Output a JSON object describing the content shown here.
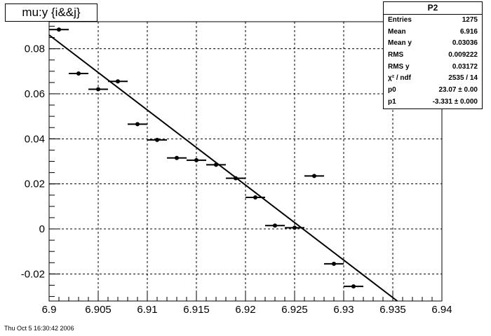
{
  "title": "mu:y {i&&j}",
  "timestamp": "Thu Oct  5 16:30:42 2006",
  "stats": {
    "name": "P2",
    "rows": [
      {
        "label": "Entries",
        "value": "1275"
      },
      {
        "label": "Mean",
        "value": "6.916"
      },
      {
        "label": "Mean y",
        "value": "0.03036"
      },
      {
        "label": "RMS",
        "value": "0.009222"
      },
      {
        "label": "RMS y",
        "value": "0.03172"
      },
      {
        "label": "χ² / ndf",
        "value": "2535 / 14"
      },
      {
        "label": "p0",
        "value": "23.07 ± 0.00"
      },
      {
        "label": "p1",
        "value": "-3.331 ± 0.000"
      }
    ]
  },
  "chart_data": {
    "type": "scatter",
    "title": "mu:y {i&&j}",
    "xlim": [
      6.9,
      6.94
    ],
    "ylim": [
      -0.032,
      0.092
    ],
    "grid": true,
    "xticks": [
      "6.9",
      "6.905",
      "6.91",
      "6.915",
      "6.92",
      "6.925",
      "6.93",
      "6.935",
      "6.94"
    ],
    "yticks": [
      "-0.02",
      "0",
      "0.02",
      "0.04",
      "0.06",
      "0.08"
    ],
    "points": [
      {
        "x": 6.901,
        "y": 0.0885,
        "xerr": 0.001
      },
      {
        "x": 6.903,
        "y": 0.069,
        "xerr": 0.001
      },
      {
        "x": 6.905,
        "y": 0.062,
        "xerr": 0.001
      },
      {
        "x": 6.907,
        "y": 0.0655,
        "xerr": 0.001
      },
      {
        "x": 6.909,
        "y": 0.0465,
        "xerr": 0.001
      },
      {
        "x": 6.911,
        "y": 0.0395,
        "xerr": 0.001
      },
      {
        "x": 6.913,
        "y": 0.0315,
        "xerr": 0.001
      },
      {
        "x": 6.915,
        "y": 0.0305,
        "xerr": 0.001
      },
      {
        "x": 6.917,
        "y": 0.0285,
        "xerr": 0.001
      },
      {
        "x": 6.919,
        "y": 0.0225,
        "xerr": 0.001
      },
      {
        "x": 6.921,
        "y": 0.014,
        "xerr": 0.001
      },
      {
        "x": 6.923,
        "y": 0.0015,
        "xerr": 0.001
      },
      {
        "x": 6.925,
        "y": 0.0005,
        "xerr": 0.001
      },
      {
        "x": 6.927,
        "y": 0.0235,
        "xerr": 0.001
      },
      {
        "x": 6.929,
        "y": -0.0155,
        "xerr": 0.001
      },
      {
        "x": 6.931,
        "y": -0.0255,
        "xerr": 0.001
      }
    ],
    "fit": {
      "p0": 23.07,
      "p1": -3.331
    }
  }
}
